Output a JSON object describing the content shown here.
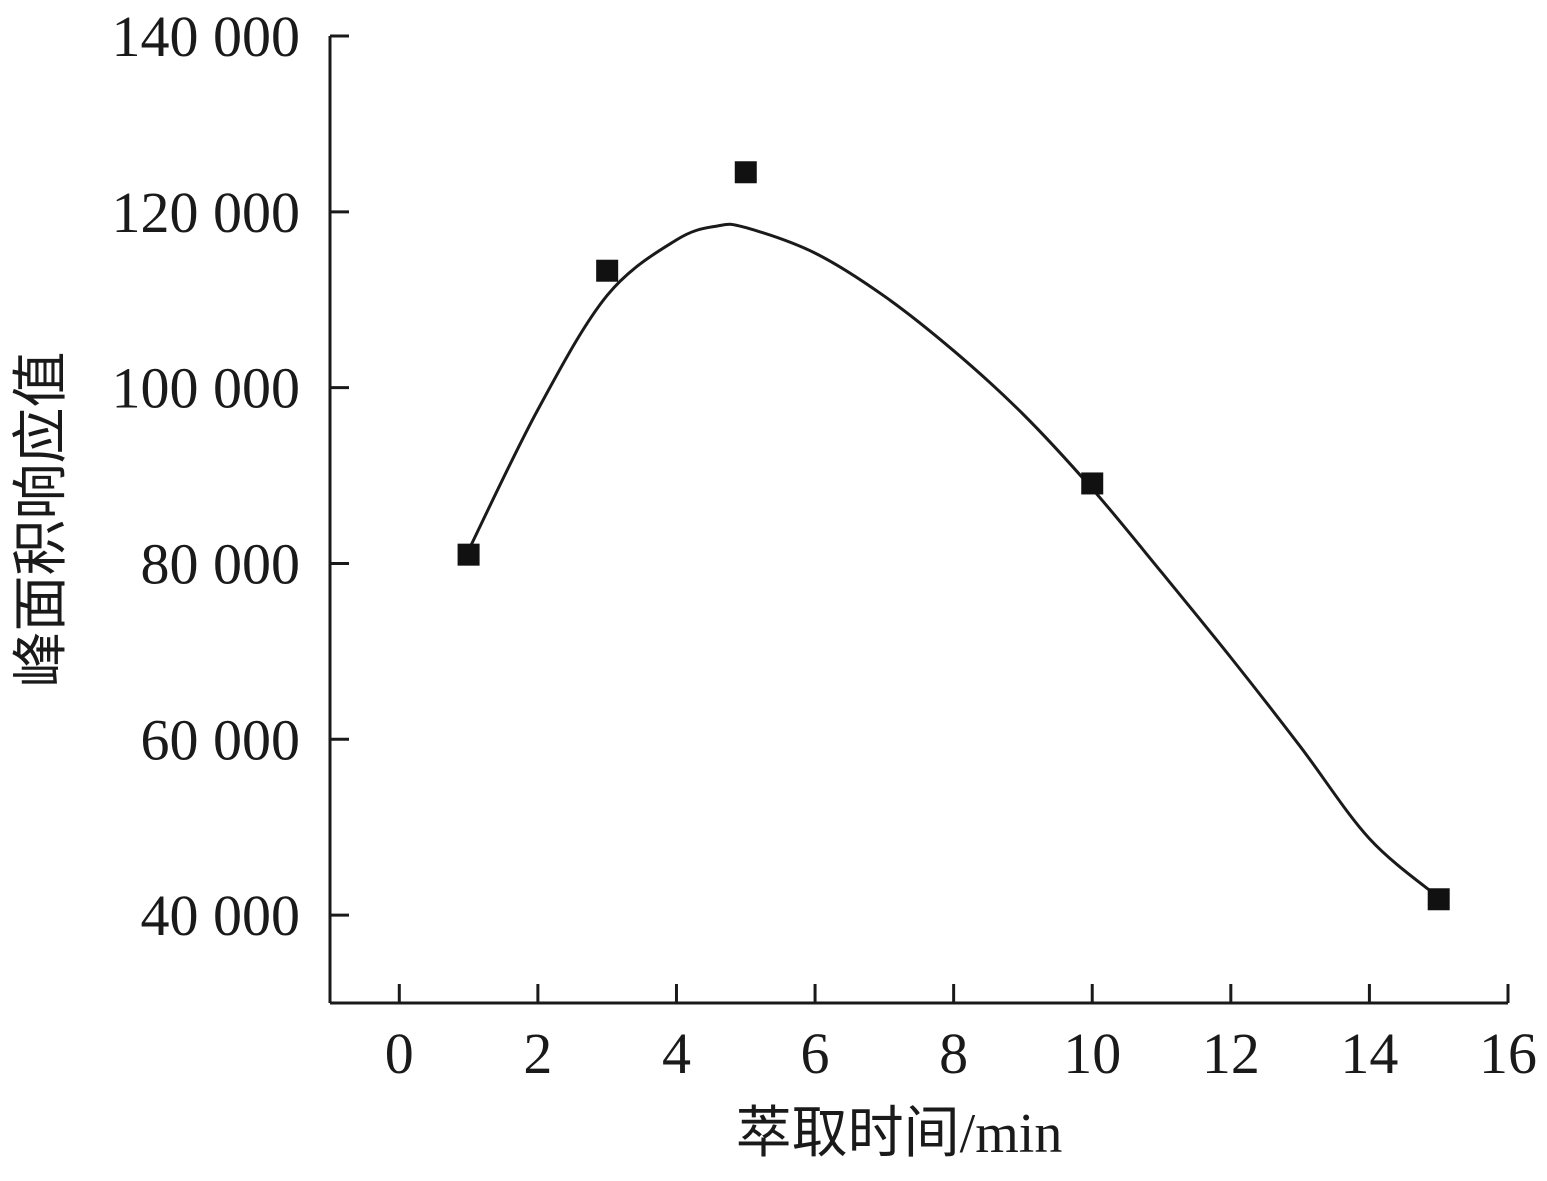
{
  "chart_data": {
    "type": "scatter",
    "title": "",
    "xlabel": "萃取时间/min",
    "ylabel": "峰面积响应值",
    "xlim": [
      -1,
      16
    ],
    "ylim": [
      30000,
      140000
    ],
    "x_ticks": [
      0,
      2,
      4,
      6,
      8,
      10,
      12,
      14,
      16
    ],
    "y_ticks": [
      40000,
      60000,
      80000,
      100000,
      120000,
      140000
    ],
    "x_tick_labels": [
      "0",
      "2",
      "4",
      "6",
      "8",
      "10",
      "12",
      "14",
      "16"
    ],
    "y_tick_labels": [
      "40 000",
      "60 000",
      "80 000",
      "100 000",
      "120 000",
      "140 000"
    ],
    "grid": false,
    "legend": "none",
    "colors": {
      "axis": "#1a1a1a",
      "marker": "#111111",
      "curve": "#1a1a1a"
    },
    "series": [
      {
        "marker": "square",
        "x": [
          1,
          3,
          5,
          10,
          15
        ],
        "y": [
          81000,
          113300,
          124500,
          89100,
          41800
        ]
      }
    ],
    "fit_curve": {
      "style": "smooth-line",
      "x": [
        1,
        2,
        3,
        4,
        4.6,
        5,
        6,
        7,
        8,
        9,
        10,
        11,
        12,
        13,
        14,
        15
      ],
      "y": [
        81500,
        97500,
        110500,
        116800,
        118400,
        118200,
        115300,
        110400,
        104200,
        97000,
        88500,
        79000,
        69300,
        59200,
        48700,
        42000
      ]
    }
  }
}
